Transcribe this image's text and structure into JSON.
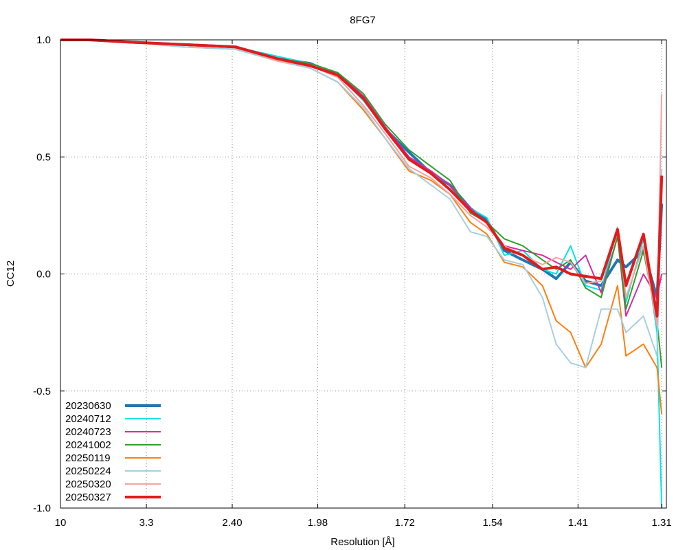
{
  "chart_data": {
    "type": "line",
    "title": "8FG7",
    "xlabel": "Resolution [Å]",
    "ylabel": "CC12",
    "x_scale": "1/d^2",
    "xlim": [
      10,
      1.305
    ],
    "ylim": [
      -1.0,
      1.0
    ],
    "x_ticks": [
      {
        "value": 10,
        "label": "10"
      },
      {
        "value": 3.3,
        "label": "3.3"
      },
      {
        "value": 2.4,
        "label": "2.40"
      },
      {
        "value": 1.98,
        "label": "1.98"
      },
      {
        "value": 1.72,
        "label": "1.72"
      },
      {
        "value": 1.54,
        "label": "1.54"
      },
      {
        "value": 1.41,
        "label": "1.41"
      },
      {
        "value": 1.31,
        "label": "1.31"
      }
    ],
    "y_ticks": [
      {
        "value": 1.0,
        "label": "1.0"
      },
      {
        "value": 0.5,
        "label": "0.5"
      },
      {
        "value": 0.0,
        "label": "0.0"
      },
      {
        "value": -0.5,
        "label": "-0.5"
      },
      {
        "value": -1.0,
        "label": "-1.0"
      }
    ],
    "grid": true,
    "legend_position": "bottom-left",
    "x": [
      10.0,
      5.14,
      3.61,
      2.81,
      2.38,
      2.15,
      2.01,
      1.91,
      1.83,
      1.77,
      1.71,
      1.66,
      1.62,
      1.58,
      1.55,
      1.52,
      1.49,
      1.46,
      1.44,
      1.42,
      1.4,
      1.38,
      1.36,
      1.35,
      1.33,
      1.315,
      1.31
    ],
    "series": [
      {
        "name": "20230630",
        "color": "#1f77b4",
        "width": 4,
        "values": [
          1.0,
          1.0,
          0.99,
          0.98,
          0.97,
          0.92,
          0.9,
          0.85,
          0.75,
          0.62,
          0.52,
          0.43,
          0.38,
          0.28,
          0.23,
          0.1,
          0.06,
          0.02,
          -0.02,
          0.05,
          -0.03,
          -0.05,
          0.06,
          0.03,
          0.1,
          -0.1,
          0.3
        ]
      },
      {
        "name": "20240712",
        "color": "#00e5e5",
        "width": 2,
        "values": [
          1.0,
          1.0,
          0.99,
          0.98,
          0.97,
          0.93,
          0.9,
          0.85,
          0.74,
          0.62,
          0.5,
          0.44,
          0.36,
          0.28,
          0.24,
          0.08,
          0.1,
          0.02,
          0.0,
          0.12,
          -0.05,
          -0.07,
          0.2,
          -0.12,
          0.15,
          -0.25,
          -1.0
        ]
      },
      {
        "name": "20240723",
        "color": "#d62ca5",
        "width": 2,
        "values": [
          1.0,
          1.0,
          0.99,
          0.98,
          0.97,
          0.92,
          0.9,
          0.86,
          0.76,
          0.63,
          0.5,
          0.44,
          0.38,
          0.28,
          0.22,
          0.12,
          0.1,
          0.08,
          0.05,
          0.02,
          0.08,
          -0.08,
          0.16,
          -0.18,
          0.0,
          -0.1,
          0.0
        ]
      },
      {
        "name": "20241002",
        "color": "#2ca02c",
        "width": 2,
        "values": [
          1.0,
          1.0,
          0.99,
          0.98,
          0.97,
          0.92,
          0.9,
          0.86,
          0.77,
          0.64,
          0.53,
          0.46,
          0.4,
          0.26,
          0.22,
          0.15,
          0.12,
          0.06,
          0.02,
          0.06,
          -0.06,
          -0.1,
          0.16,
          -0.15,
          0.1,
          -0.2,
          -0.4
        ]
      },
      {
        "name": "20250119",
        "color": "#ff7f0e",
        "width": 2,
        "values": [
          1.0,
          1.0,
          0.99,
          0.97,
          0.96,
          0.91,
          0.88,
          0.82,
          0.7,
          0.58,
          0.44,
          0.4,
          0.34,
          0.22,
          0.17,
          0.05,
          0.03,
          -0.05,
          -0.2,
          -0.25,
          -0.4,
          -0.3,
          -0.05,
          -0.35,
          -0.3,
          -0.4,
          -0.6
        ]
      },
      {
        "name": "20250224",
        "color": "#a6cee3",
        "width": 2,
        "values": [
          1.0,
          1.0,
          0.99,
          0.97,
          0.96,
          0.91,
          0.88,
          0.82,
          0.71,
          0.58,
          0.45,
          0.38,
          0.32,
          0.18,
          0.16,
          0.06,
          0.04,
          -0.1,
          -0.3,
          -0.38,
          -0.4,
          -0.15,
          -0.15,
          -0.25,
          -0.18,
          -0.35,
          0.45
        ]
      },
      {
        "name": "20250320",
        "color": "#f8a19f",
        "width": 2,
        "values": [
          1.0,
          1.0,
          0.99,
          0.98,
          0.97,
          0.91,
          0.89,
          0.84,
          0.72,
          0.6,
          0.46,
          0.41,
          0.34,
          0.25,
          0.2,
          0.12,
          0.08,
          0.04,
          0.07,
          0.05,
          -0.04,
          -0.03,
          0.2,
          -0.1,
          0.12,
          -0.22,
          0.77
        ]
      },
      {
        "name": "20250327",
        "color": "#e31a1c",
        "width": 4,
        "values": [
          1.0,
          1.0,
          0.99,
          0.98,
          0.97,
          0.92,
          0.89,
          0.85,
          0.75,
          0.62,
          0.49,
          0.43,
          0.36,
          0.27,
          0.22,
          0.11,
          0.08,
          0.02,
          0.03,
          0.0,
          -0.01,
          -0.02,
          0.19,
          -0.05,
          0.17,
          -0.18,
          0.42
        ]
      }
    ]
  }
}
